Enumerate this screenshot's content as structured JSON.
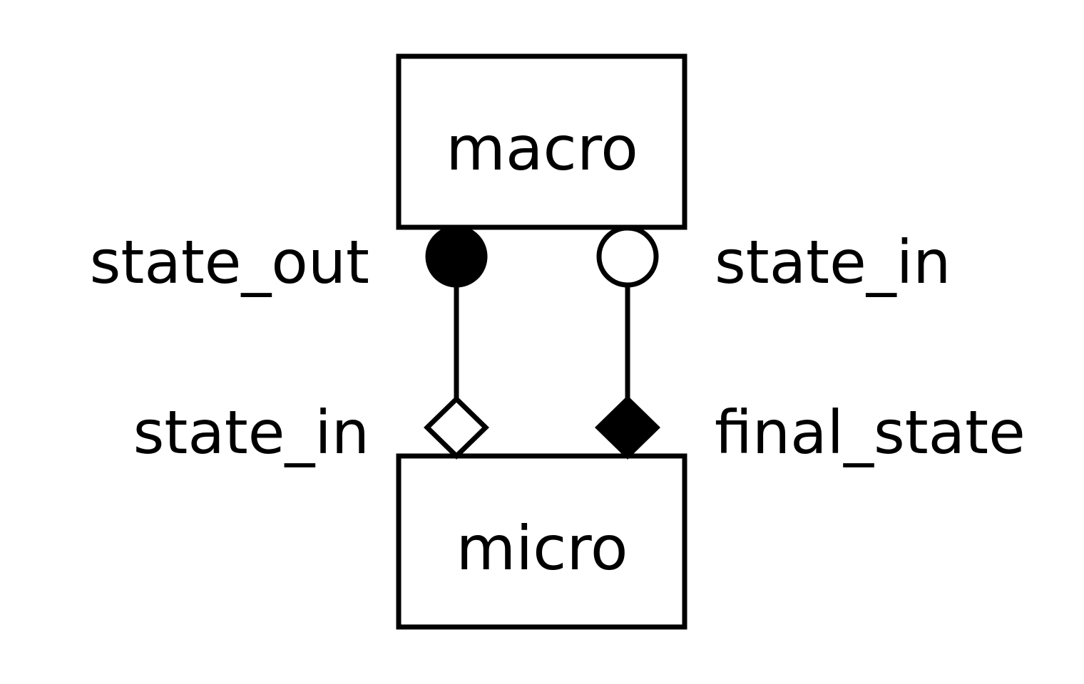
{
  "diagram": {
    "boxes": {
      "top": "macro",
      "bottom": "micro"
    },
    "ports": {
      "top_left": "state_out",
      "top_right": "state_in",
      "bottom_left": "state_in",
      "bottom_right": "final_state"
    },
    "colors": {
      "stroke": "#000000",
      "background": "#ffffff"
    }
  }
}
